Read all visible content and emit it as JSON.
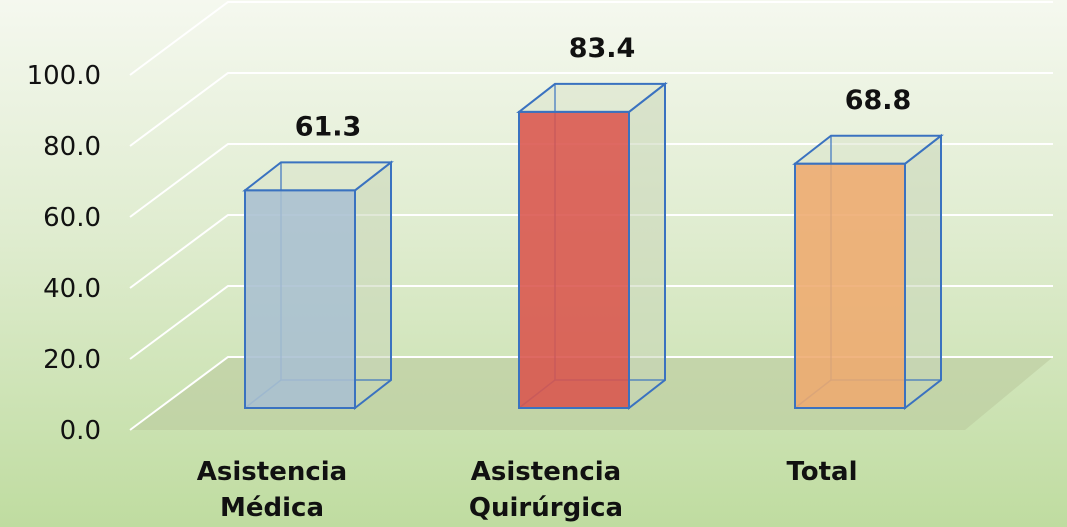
{
  "chart_data": {
    "type": "bar",
    "categories": [
      [
        "Asistencia",
        "Médica"
      ],
      [
        "Asistencia",
        "Quirúrgica"
      ],
      [
        "Total"
      ]
    ],
    "values": [
      61.3,
      83.4,
      68.8
    ],
    "data_labels": [
      "61.3",
      "83.4",
      "68.8"
    ],
    "bar_colors": [
      "#a8bfd0",
      "#d9544c",
      "#eeaa6e"
    ],
    "outline_color": "#3a72c0",
    "yticks": [
      "0.0",
      "20.0",
      "40.0",
      "60.0",
      "80.0",
      "100.0"
    ],
    "ylim": [
      0,
      100
    ],
    "grid": true,
    "style": "3d-column",
    "title": "",
    "xlabel": "",
    "ylabel": ""
  }
}
